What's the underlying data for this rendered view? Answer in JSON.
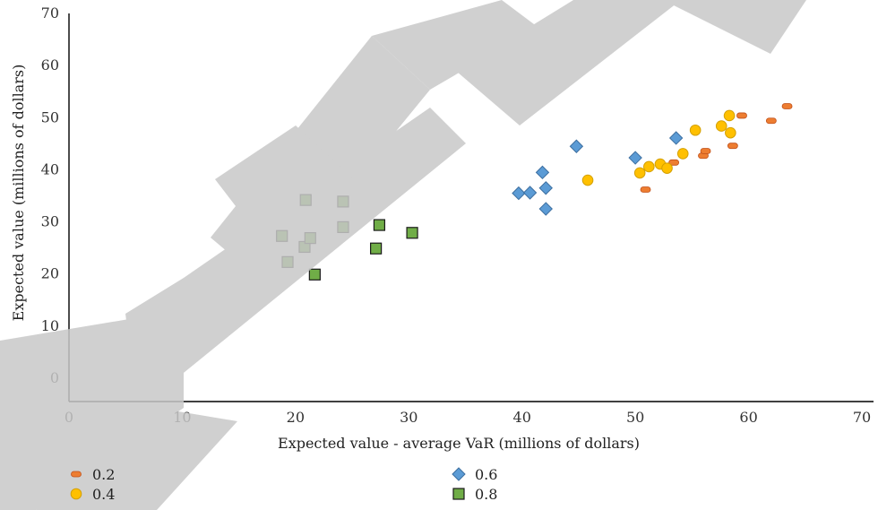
{
  "chart_data": {
    "type": "scatter",
    "title": "",
    "xlabel": "Expected value - average VaR (millions of dollars)",
    "ylabel": "Expected value (millions of dollars)",
    "xlim": [
      0,
      70
    ],
    "ylim": [
      0,
      70
    ],
    "x_ticks": [
      "0",
      "10",
      "20",
      "30",
      "40",
      "50",
      "60",
      "70"
    ],
    "y_ticks": [
      "0",
      "10",
      "20",
      "30",
      "40",
      "50",
      "60",
      "70"
    ],
    "grid": false,
    "legend_position": "bottom",
    "series": [
      {
        "name": "0.2",
        "marker": "dash",
        "color": "#ED7D31",
        "points": [
          [
            50.9,
            36.2
          ],
          [
            53.4,
            41.4
          ],
          [
            56.0,
            42.7
          ],
          [
            56.2,
            43.6
          ],
          [
            58.6,
            44.6
          ],
          [
            59.4,
            50.4
          ],
          [
            62.0,
            49.4
          ],
          [
            63.4,
            52.2
          ]
        ]
      },
      {
        "name": "0.4",
        "marker": "circle",
        "color": "#FFC000",
        "points": [
          [
            45.8,
            38.0
          ],
          [
            50.4,
            39.4
          ],
          [
            51.2,
            40.6
          ],
          [
            52.2,
            41.1
          ],
          [
            52.8,
            40.3
          ],
          [
            54.2,
            43.1
          ],
          [
            55.3,
            47.6
          ],
          [
            57.6,
            48.4
          ],
          [
            58.3,
            50.4
          ],
          [
            58.4,
            47.1
          ]
        ]
      },
      {
        "name": "0.6",
        "marker": "diamond",
        "color": "#5B9BD5",
        "points": [
          [
            39.7,
            35.5
          ],
          [
            40.7,
            35.6
          ],
          [
            41.8,
            39.5
          ],
          [
            42.1,
            36.5
          ],
          [
            42.1,
            32.5
          ],
          [
            44.8,
            44.5
          ],
          [
            50.0,
            42.3
          ],
          [
            53.6,
            46.1
          ]
        ]
      },
      {
        "name": "0.8",
        "marker": "square",
        "color": "#70AD47",
        "points": [
          [
            18.8,
            27.3
          ],
          [
            19.3,
            22.3
          ],
          [
            20.8,
            25.2
          ],
          [
            20.9,
            34.2
          ],
          [
            21.3,
            26.9
          ],
          [
            21.7,
            19.9
          ],
          [
            24.2,
            33.9
          ],
          [
            24.2,
            29.0
          ],
          [
            27.1,
            24.9
          ],
          [
            27.4,
            29.4
          ],
          [
            30.3,
            27.9
          ]
        ]
      }
    ]
  }
}
